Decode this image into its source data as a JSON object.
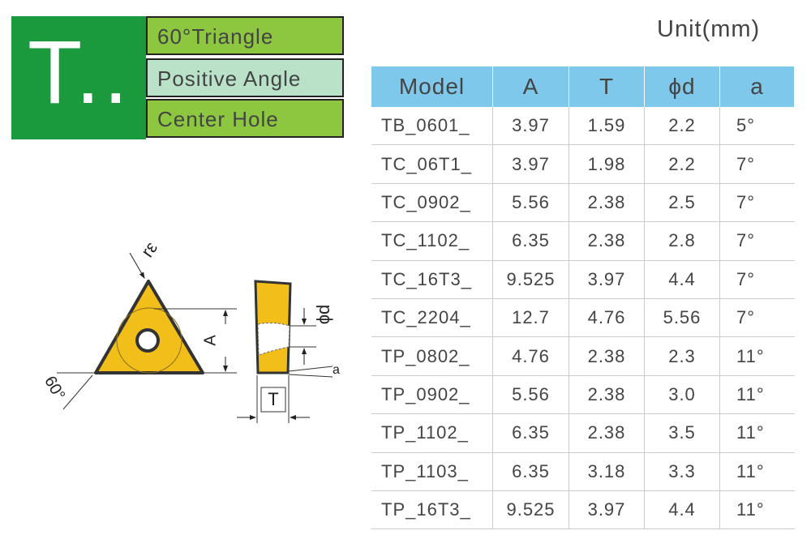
{
  "header": {
    "code": "T..",
    "features": [
      "60°Triangle",
      "Positive Angle",
      "Center Hole"
    ],
    "unit": "Unit(mm)"
  },
  "diagram": {
    "corner_radius": "rε",
    "width": "A",
    "angle": "60°",
    "thickness": "T",
    "hole": "ϕd",
    "clearance": "a"
  },
  "table": {
    "columns": [
      "Model",
      "A",
      "T",
      "ϕd",
      "a"
    ],
    "rows": [
      [
        "TB_0601_",
        "3.97",
        "1.59",
        "2.2",
        "5°"
      ],
      [
        "TC_06T1_",
        "3.97",
        "1.98",
        "2.2",
        "7°"
      ],
      [
        "TC_0902_",
        "5.56",
        "2.38",
        "2.5",
        "7°"
      ],
      [
        "TC_1102_",
        "6.35",
        "2.38",
        "2.8",
        "7°"
      ],
      [
        "TC_16T3_",
        "9.525",
        "3.97",
        "4.4",
        "7°"
      ],
      [
        "TC_2204_",
        "12.7",
        "4.76",
        "5.56",
        "7°"
      ],
      [
        "TP_0802_",
        "4.76",
        "2.38",
        "2.3",
        "11°"
      ],
      [
        "TP_0902_",
        "5.56",
        "2.38",
        "3.0",
        "11°"
      ],
      [
        "TP_1102_",
        "6.35",
        "2.38",
        "3.5",
        "11°"
      ],
      [
        "TP_1103_",
        "6.35",
        "3.18",
        "3.3",
        "11°"
      ],
      [
        "TP_16T3_",
        "9.525",
        "3.97",
        "4.4",
        "11°"
      ]
    ]
  }
}
